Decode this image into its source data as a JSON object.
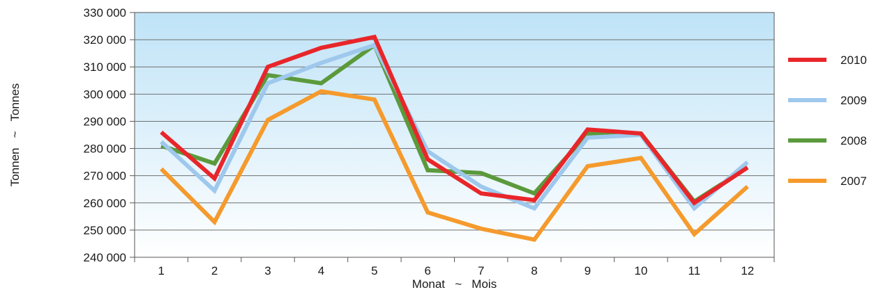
{
  "chart_data": {
    "type": "line",
    "xlabel": "Monat   ~   Mois",
    "ylabel": "Tonnen   ~   Tonnes",
    "categories": [
      "1",
      "2",
      "3",
      "4",
      "5",
      "6",
      "7",
      "8",
      "9",
      "10",
      "11",
      "12"
    ],
    "ylim": [
      240000,
      330000
    ],
    "yticks": [
      240000,
      250000,
      260000,
      270000,
      280000,
      290000,
      300000,
      310000,
      320000,
      330000
    ],
    "ytick_labels": [
      "240 000",
      "250 000",
      "260 000",
      "270 000",
      "280 000",
      "290 000",
      "300 000",
      "310 000",
      "320 000",
      "330 000"
    ],
    "grid": true,
    "legend_position": "right",
    "series": [
      {
        "name": "2010",
        "color": "#e8262a",
        "values": [
          286000,
          269000,
          310000,
          317000,
          321000,
          276000,
          263500,
          261000,
          287000,
          285500,
          260000,
          273000
        ]
      },
      {
        "name": "2009",
        "color": "#9ec8ec",
        "values": [
          282500,
          264500,
          304000,
          311500,
          318000,
          279000,
          266000,
          258000,
          284000,
          285000,
          258000,
          275000
        ]
      },
      {
        "name": "2008",
        "color": "#5b9a3c",
        "values": [
          281000,
          274500,
          307000,
          304000,
          318000,
          272000,
          271000,
          263500,
          285500,
          285500,
          260500,
          273000
        ]
      },
      {
        "name": "2007",
        "color": "#f59a2c",
        "values": [
          272500,
          253000,
          290500,
          301000,
          298000,
          256500,
          250500,
          246500,
          273500,
          276500,
          248500,
          266000
        ]
      }
    ]
  }
}
